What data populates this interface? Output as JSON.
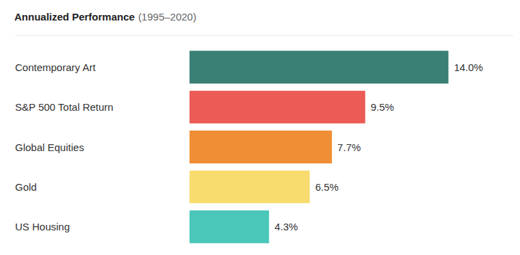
{
  "chart_data": {
    "type": "bar",
    "orientation": "horizontal",
    "title": "Annualized Performance",
    "subtitle": "(1995–2020)",
    "categories": [
      "Contemporary Art",
      "S&P 500 Total Return",
      "Global Equities",
      "Gold",
      "US Housing"
    ],
    "values": [
      14.0,
      9.5,
      7.7,
      6.5,
      4.3
    ],
    "value_labels": [
      "14.0%",
      "9.5%",
      "7.7%",
      "6.5%",
      "4.3%"
    ],
    "colors": [
      "#3a8074",
      "#ec5b56",
      "#f08e35",
      "#f8dc6e",
      "#4ac7b9"
    ],
    "xlim": [
      0,
      17.5
    ],
    "data_labels": true,
    "grid": false,
    "tick_labels": "y"
  }
}
